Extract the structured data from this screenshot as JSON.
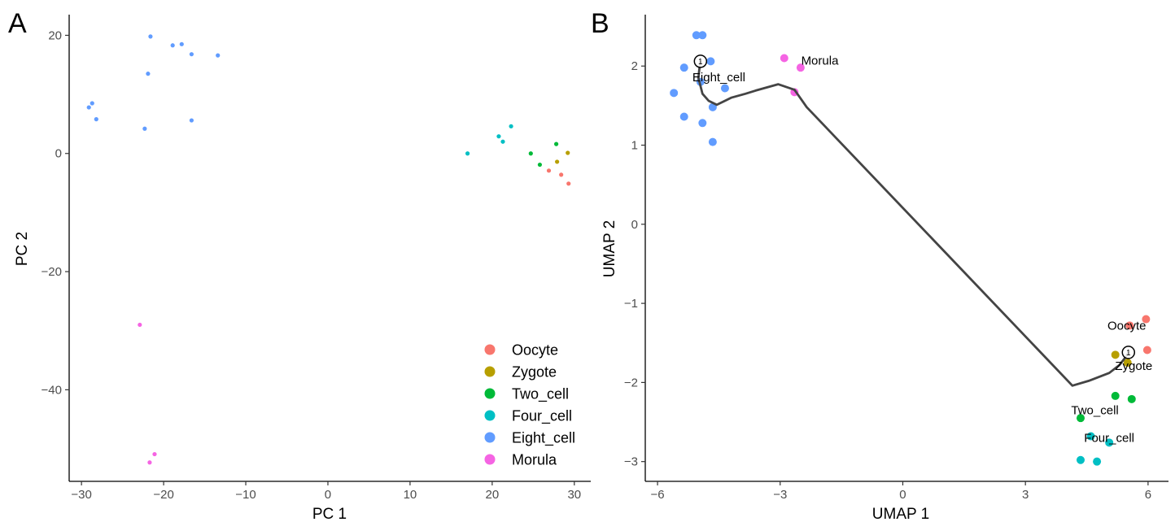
{
  "colors": {
    "Oocyte": "#F8766D",
    "Zygote": "#B79F00",
    "Two_cell": "#00BA38",
    "Four_cell": "#00BFC4",
    "Eight_cell": "#619CFF",
    "Morula": "#F564E3",
    "trajectory": "#444444"
  },
  "chart_data": [
    {
      "type": "scatter",
      "panel_label": "A",
      "xlabel": "PC  1",
      "ylabel": "PC  2",
      "xlim": [
        -31.5,
        32
      ],
      "ylim": [
        -55.5,
        23.5
      ],
      "xticks": [
        -30,
        -20,
        -10,
        0,
        10,
        20,
        30
      ],
      "yticks": [
        -40,
        -20,
        0,
        20
      ],
      "grid": false,
      "legend": {
        "position": "bottom-right",
        "entries": [
          "Oocyte",
          "Zygote",
          "Two_cell",
          "Four_cell",
          "Eight_cell",
          "Morula"
        ]
      },
      "series": [
        {
          "name": "Oocyte",
          "points": [
            [
              26.9,
              -2.9
            ],
            [
              28.4,
              -3.6
            ],
            [
              29.3,
              -5.1
            ]
          ]
        },
        {
          "name": "Zygote",
          "points": [
            [
              27.9,
              -1.4
            ],
            [
              29.2,
              0.1
            ]
          ]
        },
        {
          "name": "Two_cell",
          "points": [
            [
              24.7,
              0.0
            ],
            [
              25.8,
              -1.9
            ],
            [
              27.8,
              1.6
            ]
          ]
        },
        {
          "name": "Four_cell",
          "points": [
            [
              17.0,
              0.0
            ],
            [
              20.8,
              2.9
            ],
            [
              21.3,
              2.0
            ],
            [
              22.3,
              4.6
            ]
          ]
        },
        {
          "name": "Eight_cell",
          "points": [
            [
              -29.1,
              7.8
            ],
            [
              -28.7,
              8.5
            ],
            [
              -28.2,
              5.8
            ],
            [
              -22.3,
              4.2
            ],
            [
              -21.9,
              13.5
            ],
            [
              -21.6,
              19.8
            ],
            [
              -18.9,
              18.3
            ],
            [
              -17.8,
              18.5
            ],
            [
              -16.6,
              16.8
            ],
            [
              -16.6,
              5.6
            ],
            [
              -13.4,
              16.6
            ]
          ]
        },
        {
          "name": "Morula",
          "points": [
            [
              -22.9,
              -29.0
            ],
            [
              -21.7,
              -52.3
            ],
            [
              -21.1,
              -50.9
            ]
          ]
        }
      ]
    },
    {
      "type": "scatter",
      "panel_label": "B",
      "xlabel": "UMAP 1",
      "ylabel": "UMAP 2",
      "xlim": [
        -6.3,
        6.5
      ],
      "ylim": [
        -3.25,
        2.65
      ],
      "xticks": [
        -6,
        -3,
        0,
        3,
        6
      ],
      "yticks": [
        -3,
        -2,
        -1,
        0,
        1,
        2
      ],
      "grid": false,
      "series": [
        {
          "name": "Oocyte",
          "points": [
            [
              5.95,
              -1.2
            ],
            [
              5.55,
              -1.28
            ],
            [
              5.98,
              -1.59
            ]
          ]
        },
        {
          "name": "Zygote",
          "points": [
            [
              5.2,
              -1.65
            ],
            [
              5.5,
              -1.75
            ]
          ]
        },
        {
          "name": "Two_cell",
          "points": [
            [
              5.2,
              -2.17
            ],
            [
              5.6,
              -2.21
            ],
            [
              4.35,
              -2.45
            ]
          ]
        },
        {
          "name": "Four_cell",
          "points": [
            [
              4.6,
              -2.68
            ],
            [
              5.05,
              -2.76
            ],
            [
              4.35,
              -2.98
            ],
            [
              4.75,
              -3.0
            ]
          ]
        },
        {
          "name": "Eight_cell",
          "points": [
            [
              -5.05,
              2.39
            ],
            [
              -4.9,
              2.39
            ],
            [
              -5.35,
              1.98
            ],
            [
              -4.7,
              2.06
            ],
            [
              -4.95,
              1.8
            ],
            [
              -5.6,
              1.66
            ],
            [
              -4.35,
              1.72
            ],
            [
              -4.65,
              1.48
            ],
            [
              -5.35,
              1.36
            ],
            [
              -4.9,
              1.28
            ],
            [
              -4.65,
              1.04
            ]
          ]
        },
        {
          "name": "Morula",
          "points": [
            [
              -2.9,
              2.1
            ],
            [
              -2.5,
              1.98
            ],
            [
              -2.65,
              1.67
            ]
          ]
        }
      ],
      "trajectory": [
        [
          [
            -4.95,
            2.06
          ],
          [
            -4.98,
            1.95
          ],
          [
            -5.0,
            1.85
          ],
          [
            -4.9,
            1.65
          ],
          [
            -4.75,
            1.56
          ],
          [
            -4.55,
            1.51
          ],
          [
            -4.2,
            1.6
          ],
          [
            -3.85,
            1.65
          ],
          [
            -3.6,
            1.69
          ],
          [
            -3.05,
            1.77
          ],
          [
            -2.65,
            1.7
          ],
          [
            -2.35,
            1.48
          ],
          [
            4.15,
            -2.04
          ],
          [
            4.55,
            -1.98
          ],
          [
            5.05,
            -1.88
          ],
          [
            5.3,
            -1.78
          ],
          [
            5.45,
            -1.68
          ],
          [
            5.52,
            -1.62
          ]
        ]
      ],
      "nodes": [
        {
          "label": "1",
          "point": [
            -4.95,
            2.06
          ]
        },
        {
          "label": "1",
          "point": [
            5.52,
            -1.62
          ]
        }
      ],
      "annotations": [
        {
          "text": "Eight_cell",
          "point": [
            -4.5,
            1.86
          ]
        },
        {
          "text": "Morula",
          "point": [
            -2.03,
            2.07
          ]
        },
        {
          "text": "Oocyte",
          "point": [
            5.48,
            -1.28
          ]
        },
        {
          "text": "Zygote",
          "point": [
            5.65,
            -1.79
          ]
        },
        {
          "text": "Two_cell",
          "point": [
            4.7,
            -2.35
          ]
        },
        {
          "text": "Four_cell",
          "point": [
            5.05,
            -2.7
          ]
        }
      ]
    }
  ]
}
